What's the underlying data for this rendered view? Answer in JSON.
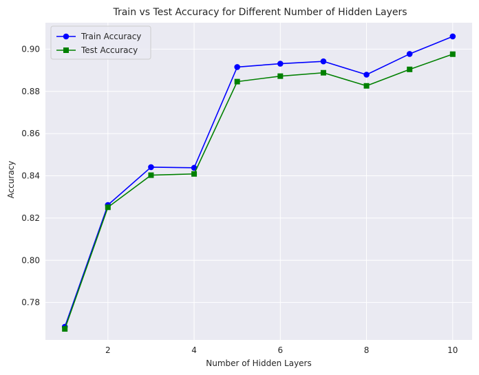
{
  "chart_data": {
    "type": "line",
    "title": "Train vs Test Accuracy for Different Number of Hidden Layers",
    "xlabel": "Number of Hidden Layers",
    "ylabel": "Accuracy",
    "x": [
      1,
      2,
      3,
      4,
      5,
      6,
      7,
      8,
      9,
      10
    ],
    "xticks": [
      2,
      4,
      6,
      8,
      10
    ],
    "xlim": [
      0.55,
      10.45
    ],
    "yticks": [
      0.78,
      0.8,
      0.82,
      0.84,
      0.86,
      0.88,
      0.9
    ],
    "ytick_labels": [
      "0.78",
      "0.80",
      "0.82",
      "0.84",
      "0.86",
      "0.88",
      "0.90"
    ],
    "ylim": [
      0.7623,
      0.9125
    ],
    "grid": true,
    "legend_position": "top-left",
    "series": [
      {
        "name": "Train Accuracy",
        "color": "#0000ff",
        "marker": "circle",
        "values": [
          0.7685,
          0.8262,
          0.8441,
          0.8438,
          0.8915,
          0.8931,
          0.8942,
          0.8879,
          0.8977,
          0.906
        ]
      },
      {
        "name": "Test Accuracy",
        "color": "#008000",
        "marker": "square",
        "values": [
          0.7675,
          0.8251,
          0.8403,
          0.8409,
          0.8846,
          0.8872,
          0.8888,
          0.8826,
          0.8904,
          0.8976
        ]
      }
    ]
  },
  "style": {
    "plot_background": "#eaeaf2",
    "grid_color": "#ffffff"
  }
}
